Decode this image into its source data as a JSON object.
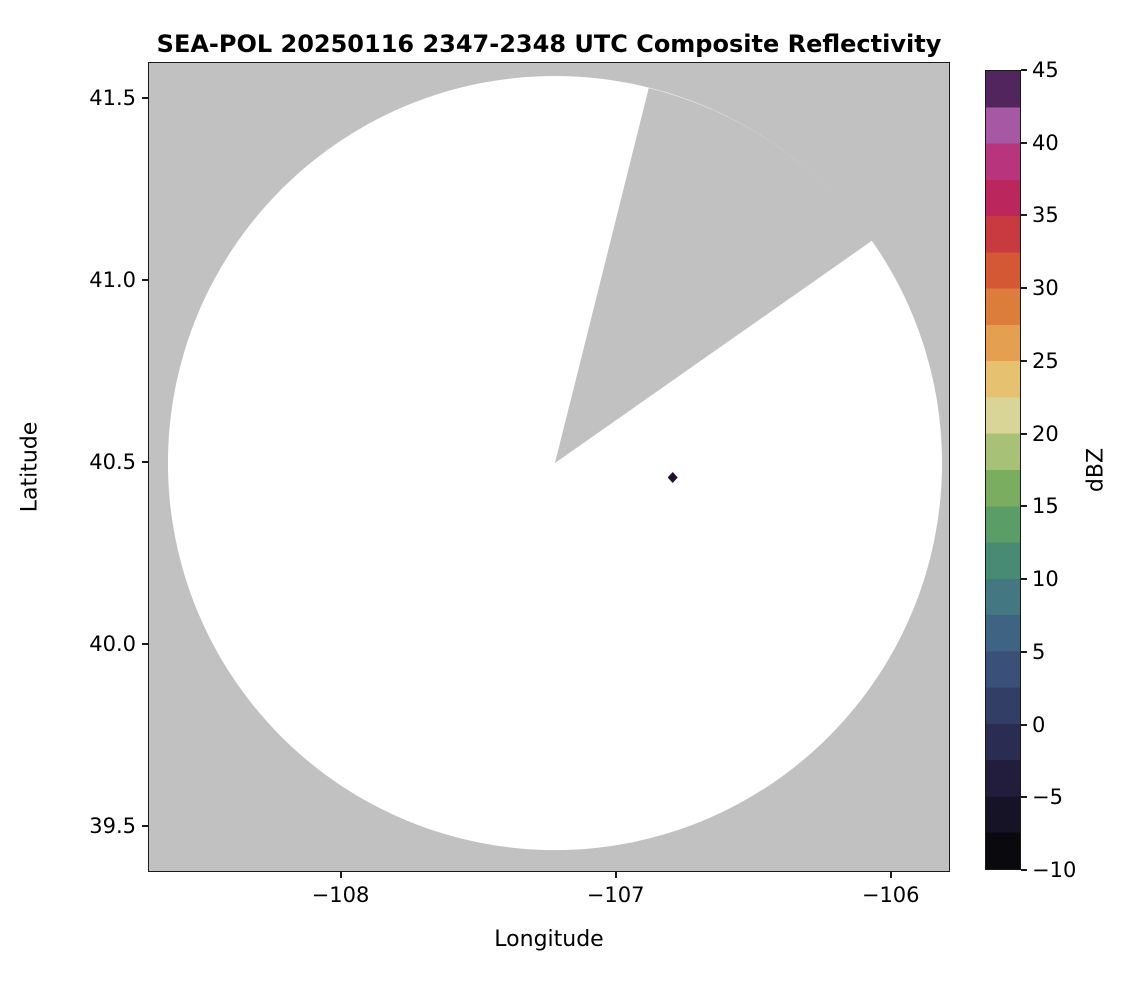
{
  "title": "SEA-POL 20250116 2347-2348 UTC Composite Reflectivity",
  "axes": {
    "xlabel": "Longitude",
    "ylabel": "Latitude",
    "x_tick_labels": [
      "−108",
      "−107",
      "−106"
    ],
    "y_tick_labels": [
      "41.5",
      "41.0",
      "40.5",
      "40.0",
      "39.5"
    ]
  },
  "colorbar": {
    "label": "dBZ",
    "tick_labels": [
      "45",
      "40",
      "35",
      "30",
      "25",
      "20",
      "15",
      "10",
      "5",
      "0",
      "−5",
      "−10"
    ],
    "min": -10,
    "max": 45,
    "colors_bottom_to_top": [
      "#0a090d",
      "#171327",
      "#221d3c",
      "#2b2c52",
      "#333e67",
      "#3a5078",
      "#3f6382",
      "#437781",
      "#488b74",
      "#5a9d66",
      "#7aad60",
      "#a7c276",
      "#d8d597",
      "#e6c170",
      "#e4a050",
      "#dd7d3b",
      "#d45833",
      "#c83940",
      "#bb265c",
      "#b8357d",
      "#a758a5",
      "#52255f"
    ]
  },
  "colors": {
    "no_data_gray": "#c1c1c1",
    "scan_area_white": "#ffffff",
    "echo_dark": "#23102f",
    "axis_black": "#1a1a1a"
  },
  "chart_data": {
    "type": "heatmap",
    "title": "SEA-POL 20250116 2347-2348 UTC Composite Reflectivity",
    "xlabel": "Longitude",
    "ylabel": "Latitude",
    "xlim": [
      -108.7,
      -105.79
    ],
    "ylim": [
      39.38,
      41.6
    ],
    "x_ticks": [
      -108,
      -107,
      -106
    ],
    "y_ticks": [
      39.5,
      40.0,
      40.5,
      41.0,
      41.5
    ],
    "colorbar": {
      "label": "dBZ",
      "range": [
        -10,
        45
      ],
      "tick_step": 5
    },
    "radar": {
      "center_lon": -107.22,
      "center_lat": 40.5,
      "coverage_radius_deg_lat": 1.07,
      "coverage_fill": "white (scanned area, no echoes above display minimum)",
      "outside_coverage_fill": "gray (no data)",
      "blocked_sector_azimuth_deg_from_north": [
        14,
        55
      ]
    },
    "echoes": [
      {
        "lon": -106.79,
        "lat": 40.46,
        "value_dbz_approx": 45,
        "note": "single small dark echo pixel"
      }
    ]
  }
}
